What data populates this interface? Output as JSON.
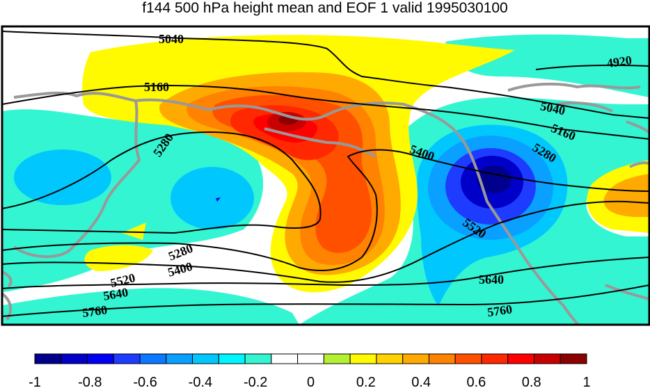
{
  "title": "f144 500 hPa height mean and EOF 1 valid 1995030100",
  "contour_labels": [
    "5040",
    "5160",
    "5280",
    "4920",
    "5040",
    "5160",
    "5280",
    "5400",
    "5520",
    "5640",
    "5760",
    "5280",
    "5400",
    "5520",
    "5640",
    "5760"
  ],
  "colorbar": {
    "colors": [
      "#00008c",
      "#0000c8",
      "#0000f5",
      "#1e3cff",
      "#0a78ff",
      "#0aa0ff",
      "#00c8ff",
      "#00f5ff",
      "#33f5d2",
      "#ffffff",
      "#ffffff",
      "#b4f032",
      "#fffa00",
      "#ffd200",
      "#ffaa00",
      "#ff8200",
      "#ff5000",
      "#ff2800",
      "#ff0000",
      "#c80000",
      "#8c0000"
    ],
    "tick_labels": [
      "-1",
      "-0.8",
      "-0.6",
      "-0.4",
      "-0.2",
      "0",
      "0.2",
      "0.4",
      "0.6",
      "0.8",
      "1"
    ]
  },
  "colors": {
    "land_outline": "#999999",
    "contour_line": "#000000"
  }
}
